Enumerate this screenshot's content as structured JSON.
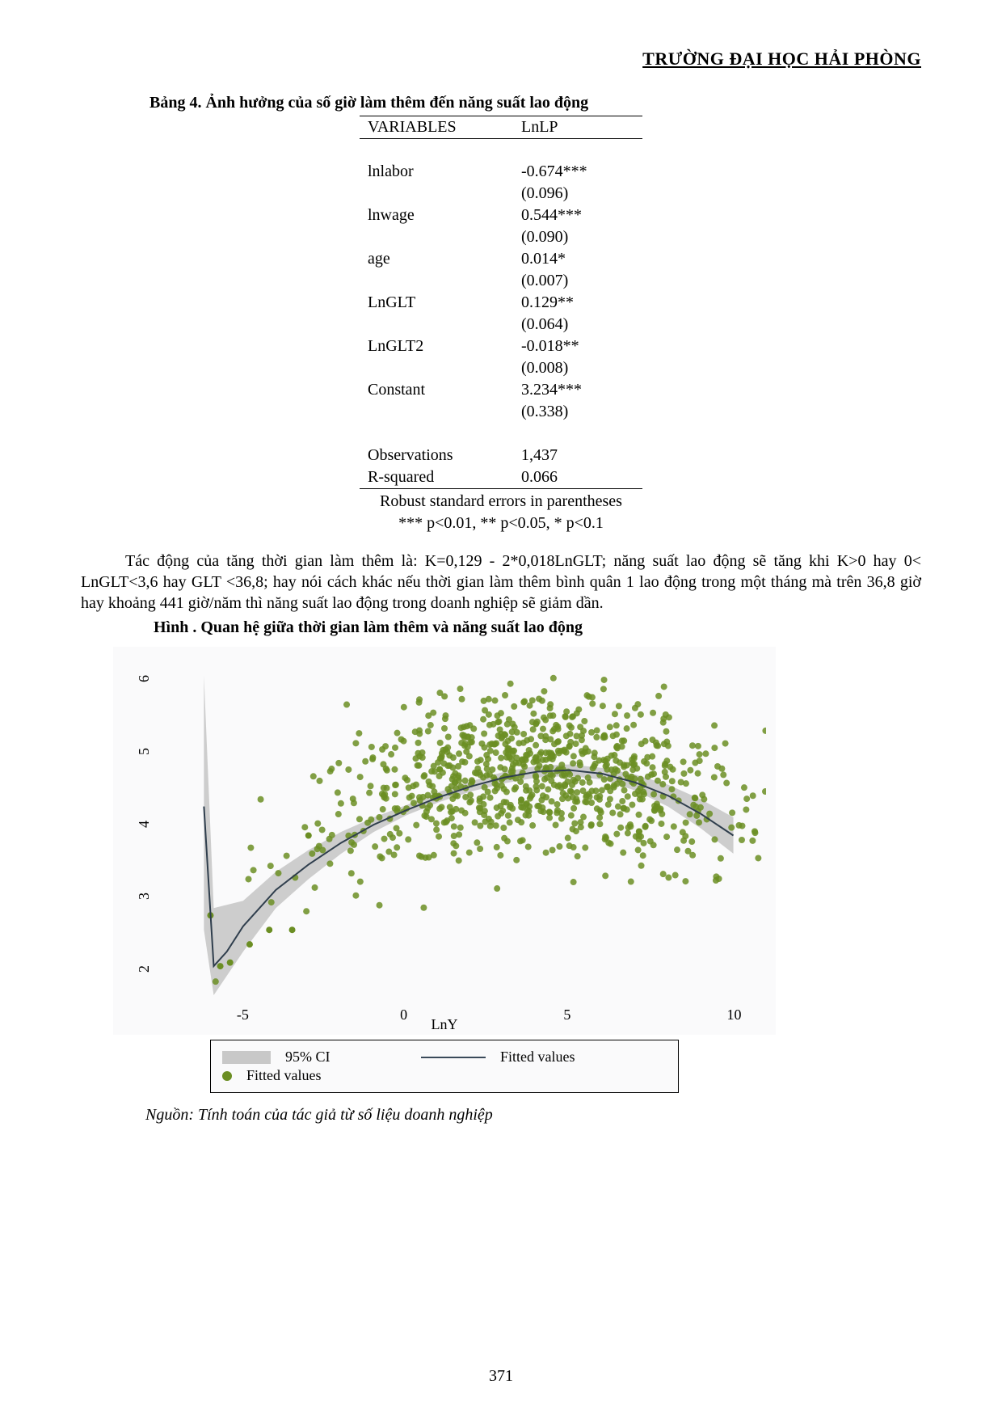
{
  "header": {
    "text": "TRƯỜNG ĐẠI HỌC HẢI PHÒNG"
  },
  "table": {
    "title": "Bảng 4. Ảnh hưởng của số giờ làm thêm đến năng suất lao động",
    "header": {
      "var": "VARIABLES",
      "val": "LnLP"
    },
    "rows": [
      {
        "var": "lnlabor",
        "coef": "-0.674***",
        "se": "(0.096)"
      },
      {
        "var": "lnwage",
        "coef": "0.544***",
        "se": "(0.090)"
      },
      {
        "var": "age",
        "coef": "0.014*",
        "se": "(0.007)"
      },
      {
        "var": "LnGLT",
        "coef": "0.129**",
        "se": "(0.064)"
      },
      {
        "var": "LnGLT2",
        "coef": "-0.018**",
        "se": "(0.008)"
      },
      {
        "var": "Constant",
        "coef": "3.234***",
        "se": "(0.338)"
      }
    ],
    "footer": [
      {
        "var": "Observations",
        "val": "1,437"
      },
      {
        "var": "R-squared",
        "val": "0.066"
      }
    ],
    "notes": [
      "Robust standard errors in parentheses",
      "*** p<0.01, ** p<0.05, * p<0.1"
    ]
  },
  "paragraph": "Tác động của tăng thời gian làm thêm là: K=0,129 - 2*0,018LnGLT; năng suất lao động sẽ tăng khi K>0 hay 0< LnGLT<3,6 hay GLT <36,8; hay nói cách khác nếu thời gian làm thêm bình quân 1 lao động trong một tháng mà trên 36,8 giờ hay khoảng 441 giờ/năm thì năng suất lao động trong doanh nghiệp sẽ giảm dần.",
  "chart": {
    "title": "Hình . Quan hệ giữa thời gian làm thêm và năng suất lao động",
    "type": "scatter",
    "background_color": "#fafafb",
    "grid": false,
    "xlabel": "LnY",
    "xlim": [
      -7,
      11
    ],
    "xticks": [
      -5,
      0,
      5,
      10
    ],
    "ylim": [
      1.5,
      6.2
    ],
    "yticks": [
      2,
      3,
      4,
      5,
      6
    ],
    "scatter": {
      "color": "#6b8e23",
      "marker": "circle",
      "size": 4,
      "n_points": 900,
      "cluster_x_center": 4.0,
      "cluster_x_spread": 3.2,
      "cluster_y_center": 4.5,
      "cluster_y_spread": 0.55
    },
    "fitted_line": {
      "color": "#2f3e4d",
      "width": 2,
      "points": [
        [
          -6.2,
          4.2
        ],
        [
          -5.9,
          2.0
        ],
        [
          -5.5,
          2.2
        ],
        [
          -5.0,
          2.55
        ],
        [
          -4.0,
          3.05
        ],
        [
          -3.0,
          3.4
        ],
        [
          -2.0,
          3.7
        ],
        [
          -1.0,
          3.95
        ],
        [
          0.0,
          4.15
        ],
        [
          1.0,
          4.33
        ],
        [
          2.0,
          4.48
        ],
        [
          3.0,
          4.6
        ],
        [
          4.0,
          4.68
        ],
        [
          5.0,
          4.7
        ],
        [
          6.0,
          4.65
        ],
        [
          7.0,
          4.53
        ],
        [
          8.0,
          4.35
        ],
        [
          9.0,
          4.1
        ],
        [
          10.0,
          3.8
        ]
      ]
    },
    "ci_band": {
      "color": "#c8c8c8",
      "opacity": 0.9,
      "upper": [
        [
          -6.2,
          6.0
        ],
        [
          -5.9,
          2.8
        ],
        [
          -5.0,
          2.9
        ],
        [
          -4.0,
          3.3
        ],
        [
          -3.0,
          3.6
        ],
        [
          -2.0,
          3.85
        ],
        [
          -1.0,
          4.05
        ],
        [
          0.0,
          4.22
        ],
        [
          1.0,
          4.4
        ],
        [
          2.0,
          4.55
        ],
        [
          3.0,
          4.68
        ],
        [
          4.0,
          4.76
        ],
        [
          5.0,
          4.78
        ],
        [
          6.0,
          4.73
        ],
        [
          7.0,
          4.64
        ],
        [
          8.0,
          4.5
        ],
        [
          9.0,
          4.3
        ],
        [
          10.0,
          4.05
        ]
      ],
      "lower": [
        [
          -6.2,
          2.5
        ],
        [
          -5.9,
          1.6
        ],
        [
          -5.0,
          2.2
        ],
        [
          -4.0,
          2.8
        ],
        [
          -3.0,
          3.2
        ],
        [
          -2.0,
          3.55
        ],
        [
          -1.0,
          3.85
        ],
        [
          0.0,
          4.08
        ],
        [
          1.0,
          4.26
        ],
        [
          2.0,
          4.41
        ],
        [
          3.0,
          4.52
        ],
        [
          4.0,
          4.6
        ],
        [
          5.0,
          4.62
        ],
        [
          6.0,
          4.57
        ],
        [
          7.0,
          4.42
        ],
        [
          8.0,
          4.2
        ],
        [
          9.0,
          3.9
        ],
        [
          10.0,
          3.55
        ]
      ]
    },
    "legend": {
      "items": [
        {
          "swatch": "ci",
          "label": "95% CI"
        },
        {
          "swatch": "line",
          "label": "Fitted values"
        },
        {
          "swatch": "dot",
          "label": "Fitted values"
        }
      ]
    },
    "label_fontsize": 18
  },
  "source": "Nguồn: Tính toán của tác giả từ số liệu doanh nghiệp",
  "page_number": "371"
}
